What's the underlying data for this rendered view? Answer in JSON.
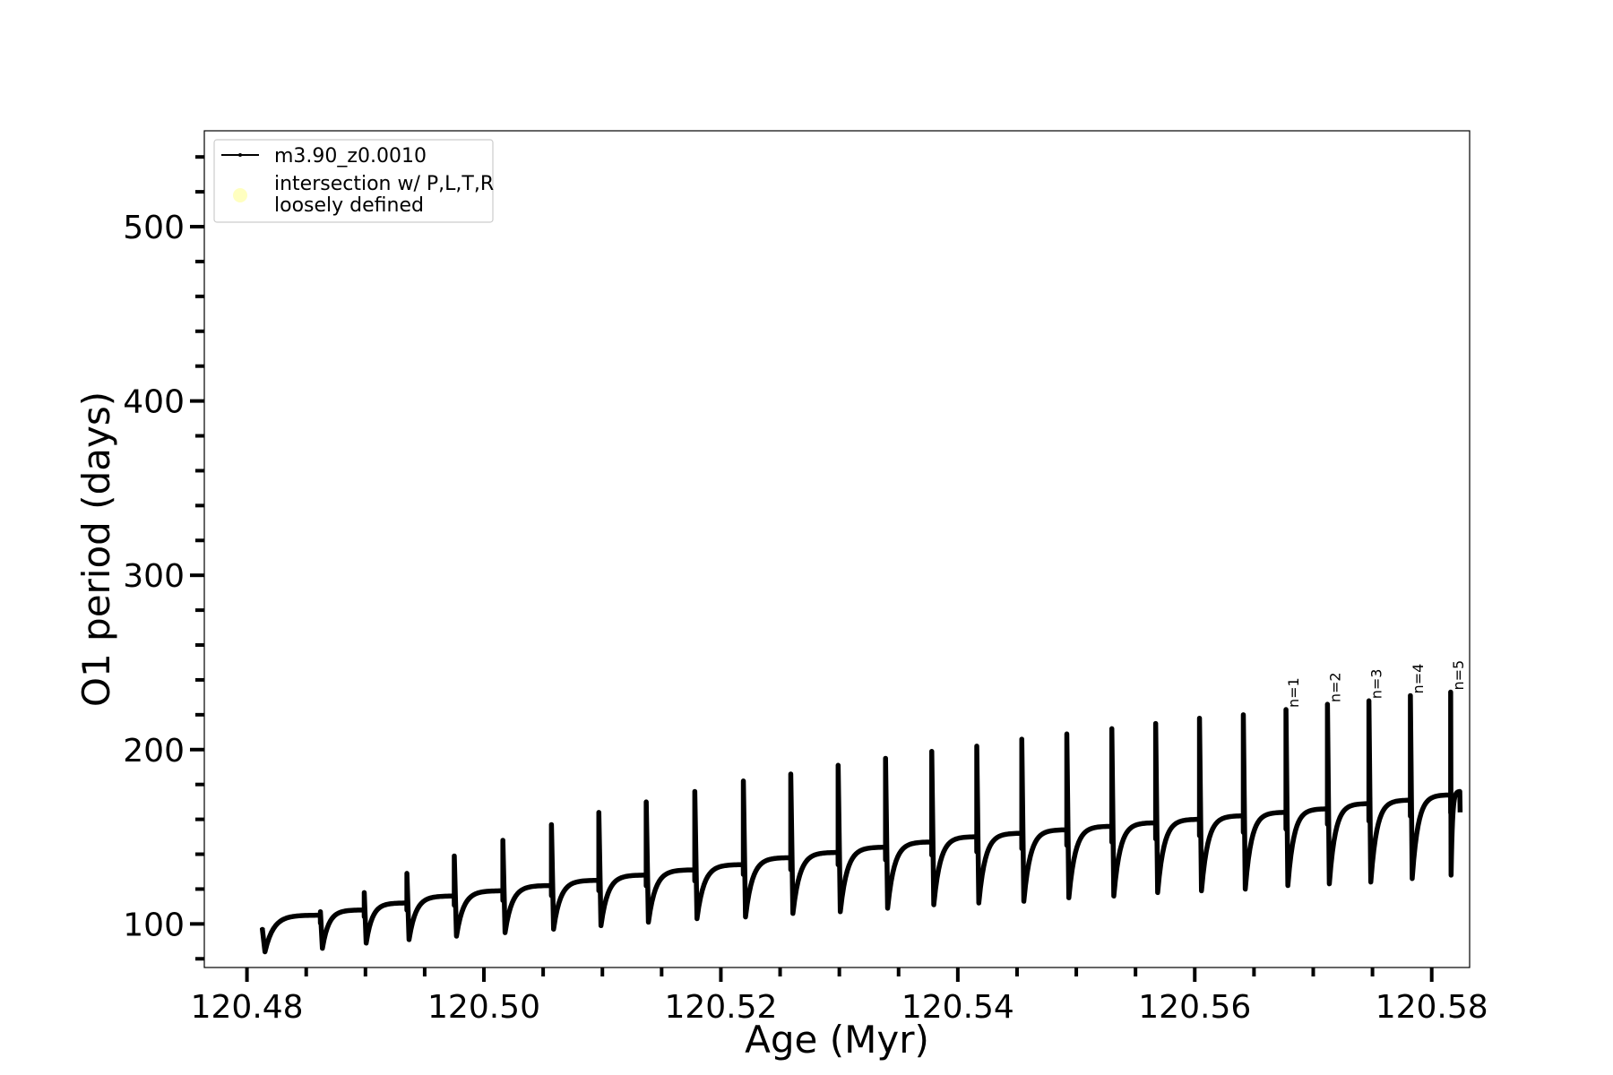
{
  "chart_data": {
    "type": "line",
    "title": "",
    "xlabel": "Age (Myr)",
    "ylabel": "O1 period (days)",
    "xlim": [
      120.4764,
      120.5832
    ],
    "ylim": [
      75,
      555
    ],
    "xticks": [
      120.48,
      120.5,
      120.52,
      120.54,
      120.56,
      120.58
    ],
    "xtick_labels": [
      "120.48",
      "120.50",
      "120.52",
      "120.54",
      "120.56",
      "120.58"
    ],
    "x_minor_step": 0.005,
    "yticks": [
      100,
      200,
      300,
      400,
      500
    ],
    "ytick_labels": [
      "100",
      "200",
      "300",
      "400",
      "500"
    ],
    "y_minor_step": 20,
    "grid": false,
    "legend": {
      "placement": "top-left",
      "entries": [
        {
          "label": "m3.90_z0.0010",
          "marker": "line",
          "color": "#000000"
        },
        {
          "label": "intersection w/ P,L,T,R\nloosely defined",
          "marker": "circle",
          "color": "#ffffc0"
        }
      ]
    },
    "series": [
      {
        "name": "m3.90_z0.0010",
        "color": "#000000",
        "start_age": 120.4813,
        "cycles": [
          {
            "start": 120.4813,
            "spike": 97,
            "min": 84,
            "plateau": 105
          },
          {
            "start": 120.4862,
            "spike": 107,
            "min": 86,
            "plateau": 108
          },
          {
            "start": 120.4899,
            "spike": 118,
            "min": 89,
            "plateau": 112
          },
          {
            "start": 120.4935,
            "spike": 129,
            "min": 91,
            "plateau": 116
          },
          {
            "start": 120.4975,
            "spike": 139,
            "min": 93,
            "plateau": 119
          },
          {
            "start": 120.5016,
            "spike": 148,
            "min": 95,
            "plateau": 122
          },
          {
            "start": 120.5057,
            "spike": 157,
            "min": 97,
            "plateau": 125
          },
          {
            "start": 120.5097,
            "spike": 164,
            "min": 99,
            "plateau": 128
          },
          {
            "start": 120.5137,
            "spike": 170,
            "min": 101,
            "plateau": 131
          },
          {
            "start": 120.5178,
            "spike": 176,
            "min": 103,
            "plateau": 134
          },
          {
            "start": 120.5219,
            "spike": 182,
            "min": 104,
            "plateau": 138
          },
          {
            "start": 120.5259,
            "spike": 186,
            "min": 106,
            "plateau": 141
          },
          {
            "start": 120.5299,
            "spike": 191,
            "min": 107,
            "plateau": 144
          },
          {
            "start": 120.5339,
            "spike": 195,
            "min": 109,
            "plateau": 147
          },
          {
            "start": 120.5378,
            "spike": 199,
            "min": 111,
            "plateau": 150
          },
          {
            "start": 120.5416,
            "spike": 202,
            "min": 112,
            "plateau": 152
          },
          {
            "start": 120.5454,
            "spike": 206,
            "min": 113,
            "plateau": 154
          },
          {
            "start": 120.5492,
            "spike": 209,
            "min": 115,
            "plateau": 156
          },
          {
            "start": 120.553,
            "spike": 212,
            "min": 116,
            "plateau": 158
          },
          {
            "start": 120.5567,
            "spike": 215,
            "min": 118,
            "plateau": 160
          },
          {
            "start": 120.5604,
            "spike": 218,
            "min": 119,
            "plateau": 162
          },
          {
            "start": 120.5641,
            "spike": 220,
            "min": 120,
            "plateau": 164
          },
          {
            "start": 120.5677,
            "spike": 223,
            "min": 122,
            "plateau": 166
          },
          {
            "start": 120.5712,
            "spike": 226,
            "min": 123,
            "plateau": 169
          },
          {
            "start": 120.5747,
            "spike": 228,
            "min": 124,
            "plateau": 171
          },
          {
            "start": 120.5782,
            "spike": 231,
            "min": 126,
            "plateau": 174
          },
          {
            "start": 120.5816,
            "spike": 233,
            "min": 128,
            "plateau": 176
          }
        ],
        "end": {
          "age": 120.5824,
          "value": 164
        }
      }
    ],
    "annotations": [
      {
        "text": "n=1",
        "x": 120.5677,
        "y": 223
      },
      {
        "text": "n=2",
        "x": 120.5712,
        "y": 226
      },
      {
        "text": "n=3",
        "x": 120.5747,
        "y": 228
      },
      {
        "text": "n=4",
        "x": 120.5782,
        "y": 231
      },
      {
        "text": "n=5",
        "x": 120.5816,
        "y": 233
      }
    ]
  }
}
